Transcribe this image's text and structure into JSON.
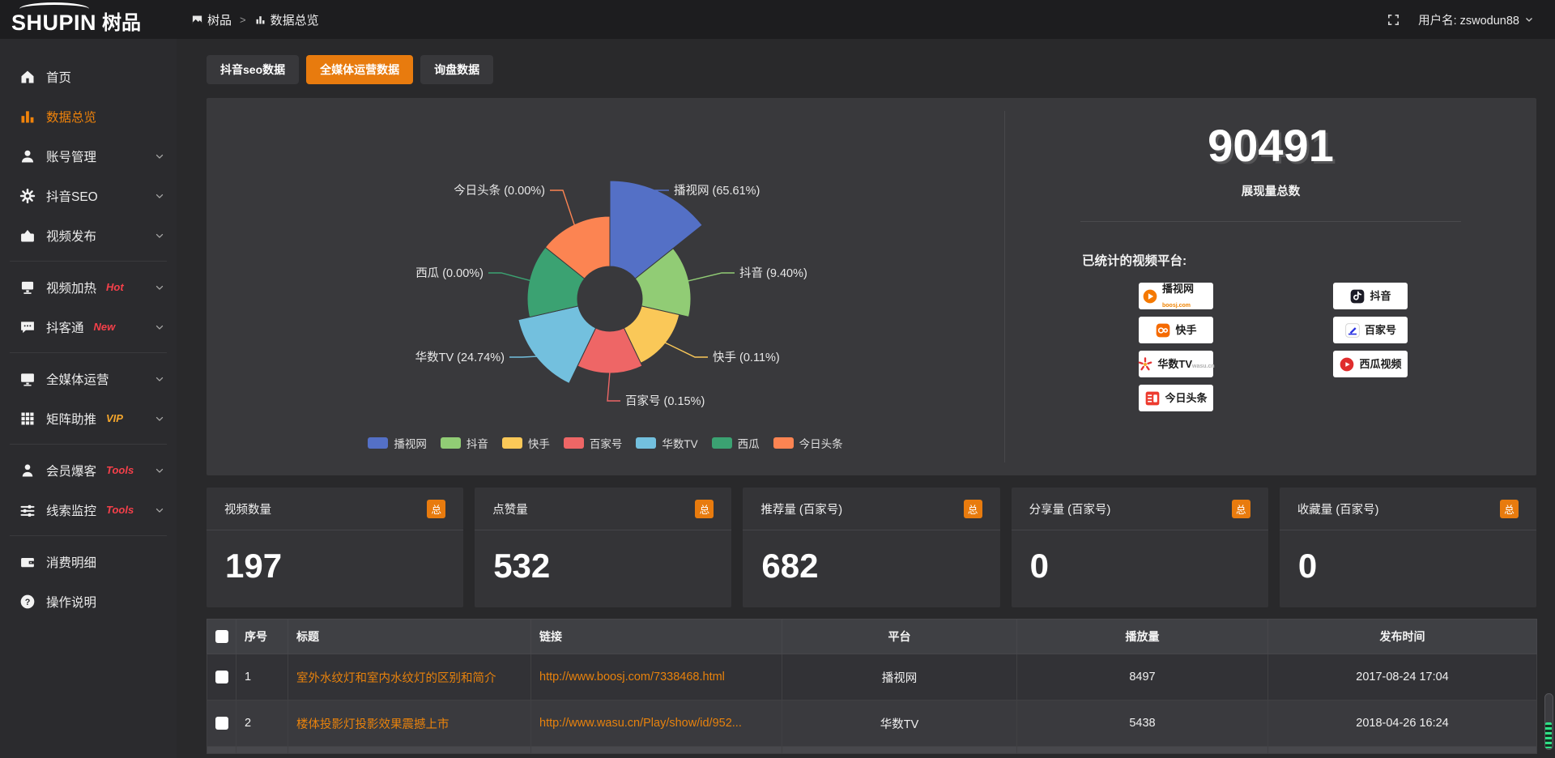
{
  "header": {
    "logo_en": "SHUPIN",
    "logo_cn": "树品",
    "breadcrumb": {
      "root": "树品",
      "separator": ">",
      "current": "数据总览"
    },
    "user_label": "用户名: zswodun88"
  },
  "sidebar": {
    "items": [
      {
        "name": "home",
        "label": "首页",
        "icon": "home-icon",
        "chevron": false,
        "active": false
      },
      {
        "name": "data-overview",
        "label": "数据总览",
        "icon": "bar-chart-icon",
        "chevron": false,
        "active": true
      },
      {
        "name": "account-management",
        "label": "账号管理",
        "icon": "user-icon",
        "chevron": true
      },
      {
        "name": "douyin-seo",
        "label": "抖音SEO",
        "icon": "gear-icon",
        "chevron": true
      },
      {
        "name": "video-publish",
        "label": "视频发布",
        "icon": "video-upload-icon",
        "chevron": true,
        "divider_after": true
      },
      {
        "name": "video-heating",
        "label": "视频加热",
        "icon": "screen-icon",
        "chevron": true,
        "tag": "Hot",
        "tag_color": "#f5404a"
      },
      {
        "name": "douketong",
        "label": "抖客通",
        "icon": "chat-icon",
        "chevron": true,
        "tag": "New",
        "tag_color": "#f5404a",
        "divider_after": true
      },
      {
        "name": "media-operation",
        "label": "全媒体运营",
        "icon": "monitor-icon",
        "chevron": true
      },
      {
        "name": "matrix-boost",
        "label": "矩阵助推",
        "icon": "grid-icon",
        "chevron": true,
        "tag": "VIP",
        "tag_color": "#f5a62c",
        "divider_after": true
      },
      {
        "name": "member-burst",
        "label": "会员爆客",
        "icon": "person-icon",
        "chevron": true,
        "tag": "Tools",
        "tag_color": "#f5404a"
      },
      {
        "name": "lead-monitor",
        "label": "线索监控",
        "icon": "sliders-icon",
        "chevron": true,
        "tag": "Tools",
        "tag_color": "#f5404a",
        "divider_after": true
      },
      {
        "name": "consumption-detail",
        "label": "消费明细",
        "icon": "wallet-icon",
        "chevron": false
      },
      {
        "name": "operation-guide",
        "label": "操作说明",
        "icon": "question-icon",
        "chevron": false
      }
    ]
  },
  "tabs": [
    {
      "name": "douyin-seo-data",
      "label": "抖音seo数据",
      "active": false
    },
    {
      "name": "media-operation-data",
      "label": "全媒体运营数据",
      "active": true
    },
    {
      "name": "inquiry-data",
      "label": "询盘数据",
      "active": false
    }
  ],
  "chart_data": {
    "type": "pie",
    "subtype": "rose",
    "legend_position": "bottom",
    "series": [
      {
        "name": "播视网",
        "percent": 65.61,
        "label": "播视网 (65.61%)",
        "color": "#5470c6"
      },
      {
        "name": "抖音",
        "percent": 9.4,
        "label": "抖音 (9.40%)",
        "color": "#91cc75"
      },
      {
        "name": "快手",
        "percent": 0.11,
        "label": "快手 (0.11%)",
        "color": "#fac858"
      },
      {
        "name": "百家号",
        "percent": 0.15,
        "label": "百家号 (0.15%)",
        "color": "#ee6666"
      },
      {
        "name": "华数TV",
        "percent": 24.74,
        "label": "华数TV (24.74%)",
        "color": "#73c0de"
      },
      {
        "name": "西瓜",
        "percent": 0.0,
        "label": "西瓜 (0.00%)",
        "color": "#3ba272"
      },
      {
        "name": "今日头条",
        "percent": 0.0,
        "label": "今日头条 (0.00%)",
        "color": "#fc8452"
      }
    ],
    "legend": [
      "播视网",
      "抖音",
      "快手",
      "百家号",
      "华数TV",
      "西瓜",
      "今日头条"
    ]
  },
  "summary": {
    "total": "90491",
    "total_label": "展现量总数",
    "platforms_label": "已统计的视频平台:",
    "platforms_left": [
      {
        "name": "boosj",
        "label": "播视网",
        "sub": "boosj.com",
        "sub_color": "#f08300"
      },
      {
        "name": "kuaishou",
        "label": "快手"
      },
      {
        "name": "wasu",
        "label": "华数TV",
        "sub": "wasu.cn",
        "sub_color": "#b0b0b0"
      },
      {
        "name": "toutiao",
        "label": "今日头条"
      }
    ],
    "platforms_right": [
      {
        "name": "douyin",
        "label": "抖音"
      },
      {
        "name": "baijiahao",
        "label": "百家号"
      },
      {
        "name": "xigua",
        "label": "西瓜视频"
      }
    ]
  },
  "stats_cards": [
    {
      "name": "video-count",
      "title": "视频数量",
      "badge": "总",
      "value": "197"
    },
    {
      "name": "like-count",
      "title": "点赞量",
      "badge": "总",
      "value": "532"
    },
    {
      "name": "recommend-count",
      "title": "推荐量 (百家号)",
      "badge": "总",
      "value": "682"
    },
    {
      "name": "share-count",
      "title": "分享量 (百家号)",
      "badge": "总",
      "value": "0"
    },
    {
      "name": "favorite-count",
      "title": "收藏量 (百家号)",
      "badge": "总",
      "value": "0"
    }
  ],
  "table": {
    "columns": [
      "",
      "序号",
      "标题",
      "链接",
      "平台",
      "播放量",
      "发布时间"
    ],
    "rows": [
      {
        "index": "1",
        "title": "室外水纹灯和室内水纹灯的区别和简介",
        "link": "http://www.boosj.com/7338468.html",
        "platform": "播视网",
        "plays": "8497",
        "publish_time": "2017-08-24 17:04"
      },
      {
        "index": "2",
        "title": "楼体投影灯投影效果震撼上市",
        "link": "http://www.wasu.cn/Play/show/id/952...",
        "platform": "华数TV",
        "plays": "5438",
        "publish_time": "2018-04-26 16:24"
      }
    ]
  },
  "colors": {
    "accent": "#e87b0e",
    "link": "#e8820c",
    "panel": "#39393c",
    "page": "#29292b",
    "sidebar": "#2b2b2e",
    "header_bar": "#1d1d1f"
  }
}
